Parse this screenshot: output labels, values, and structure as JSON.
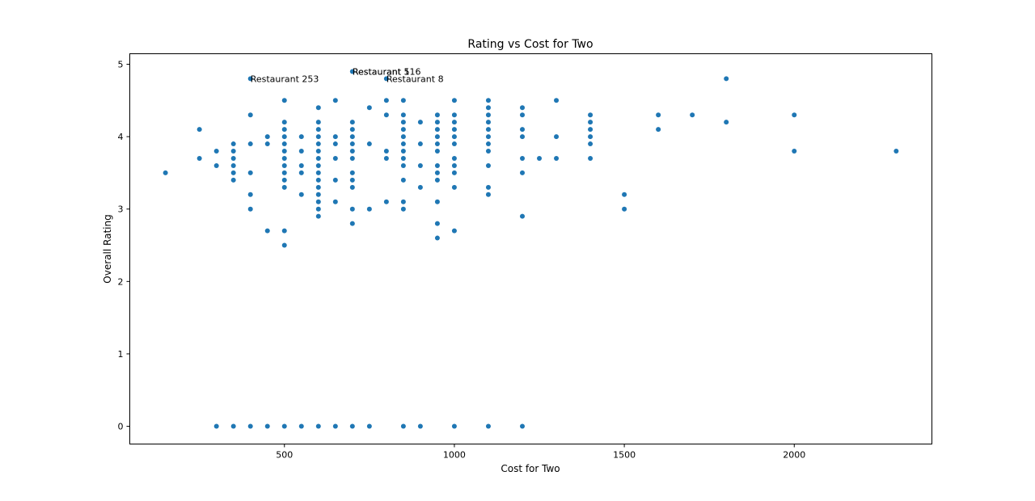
{
  "chart_data": {
    "type": "scatter",
    "title": "Rating vs Cost for Two",
    "xlabel": "Cost for Two",
    "ylabel": "Overall Rating",
    "xlim": [
      45,
      2405
    ],
    "ylim": [
      -0.245,
      5.145
    ],
    "xticks": [
      500,
      1000,
      1500,
      2000
    ],
    "xtick_labels": [
      "500",
      "1000",
      "1500",
      "2000"
    ],
    "yticks": [
      0,
      1,
      2,
      3,
      4,
      5
    ],
    "ytick_labels": [
      "0",
      "1",
      "2",
      "3",
      "4",
      "5"
    ],
    "grid": false,
    "marker_color": "#1f77b4",
    "annotations": [
      {
        "text": "Restaurant 253",
        "x": 400,
        "y": 4.8
      },
      {
        "text": "Restaurant 116",
        "x": 700,
        "y": 4.9
      },
      {
        "text": "Restaurant 5",
        "x": 700,
        "y": 4.9
      },
      {
        "text": "Restaurant 8",
        "x": 800,
        "y": 4.8
      }
    ],
    "points": [
      [
        150,
        3.5
      ],
      [
        250,
        4.1
      ],
      [
        250,
        3.7
      ],
      [
        300,
        3.8
      ],
      [
        300,
        3.6
      ],
      [
        300,
        0
      ],
      [
        350,
        3.9
      ],
      [
        350,
        3.8
      ],
      [
        350,
        3.7
      ],
      [
        350,
        3.6
      ],
      [
        350,
        3.5
      ],
      [
        350,
        3.4
      ],
      [
        350,
        0
      ],
      [
        400,
        4.8
      ],
      [
        400,
        4.3
      ],
      [
        400,
        3.9
      ],
      [
        400,
        3.5
      ],
      [
        400,
        3.2
      ],
      [
        400,
        3.0
      ],
      [
        400,
        0
      ],
      [
        450,
        4.0
      ],
      [
        450,
        3.9
      ],
      [
        450,
        2.7
      ],
      [
        450,
        0
      ],
      [
        500,
        4.5
      ],
      [
        500,
        4.2
      ],
      [
        500,
        4.1
      ],
      [
        500,
        4.0
      ],
      [
        500,
        3.9
      ],
      [
        500,
        3.8
      ],
      [
        500,
        3.7
      ],
      [
        500,
        3.6
      ],
      [
        500,
        3.5
      ],
      [
        500,
        3.4
      ],
      [
        500,
        3.3
      ],
      [
        500,
        2.7
      ],
      [
        500,
        2.5
      ],
      [
        500,
        0
      ],
      [
        550,
        4.0
      ],
      [
        550,
        3.8
      ],
      [
        550,
        3.6
      ],
      [
        550,
        3.5
      ],
      [
        550,
        3.2
      ],
      [
        550,
        0
      ],
      [
        600,
        4.4
      ],
      [
        600,
        4.2
      ],
      [
        600,
        4.1
      ],
      [
        600,
        4.0
      ],
      [
        600,
        3.9
      ],
      [
        600,
        3.8
      ],
      [
        600,
        3.7
      ],
      [
        600,
        3.6
      ],
      [
        600,
        3.5
      ],
      [
        600,
        3.4
      ],
      [
        600,
        3.3
      ],
      [
        600,
        3.2
      ],
      [
        600,
        3.1
      ],
      [
        600,
        3.0
      ],
      [
        600,
        2.9
      ],
      [
        600,
        0
      ],
      [
        650,
        4.5
      ],
      [
        650,
        4.0
      ],
      [
        650,
        3.9
      ],
      [
        650,
        3.7
      ],
      [
        650,
        3.4
      ],
      [
        650,
        3.1
      ],
      [
        650,
        0
      ],
      [
        700,
        4.9
      ],
      [
        700,
        4.2
      ],
      [
        700,
        4.1
      ],
      [
        700,
        4.0
      ],
      [
        700,
        3.9
      ],
      [
        700,
        3.8
      ],
      [
        700,
        3.7
      ],
      [
        700,
        3.5
      ],
      [
        700,
        3.4
      ],
      [
        700,
        3.3
      ],
      [
        700,
        3.0
      ],
      [
        700,
        2.8
      ],
      [
        700,
        0
      ],
      [
        750,
        4.4
      ],
      [
        750,
        3.9
      ],
      [
        750,
        3.0
      ],
      [
        750,
        0
      ],
      [
        800,
        4.8
      ],
      [
        800,
        4.5
      ],
      [
        800,
        4.3
      ],
      [
        800,
        3.8
      ],
      [
        800,
        3.7
      ],
      [
        800,
        3.1
      ],
      [
        850,
        4.5
      ],
      [
        850,
        4.3
      ],
      [
        850,
        4.2
      ],
      [
        850,
        4.1
      ],
      [
        850,
        4.0
      ],
      [
        850,
        3.9
      ],
      [
        850,
        3.8
      ],
      [
        850,
        3.7
      ],
      [
        850,
        3.6
      ],
      [
        850,
        3.4
      ],
      [
        850,
        3.1
      ],
      [
        850,
        3.0
      ],
      [
        850,
        0
      ],
      [
        900,
        4.2
      ],
      [
        900,
        3.9
      ],
      [
        900,
        3.6
      ],
      [
        900,
        3.3
      ],
      [
        900,
        0
      ],
      [
        950,
        4.3
      ],
      [
        950,
        4.2
      ],
      [
        950,
        4.1
      ],
      [
        950,
        4.0
      ],
      [
        950,
        3.9
      ],
      [
        950,
        3.8
      ],
      [
        950,
        3.6
      ],
      [
        950,
        3.5
      ],
      [
        950,
        3.4
      ],
      [
        950,
        3.1
      ],
      [
        950,
        2.8
      ],
      [
        950,
        2.6
      ],
      [
        1000,
        4.5
      ],
      [
        1000,
        4.3
      ],
      [
        1000,
        4.2
      ],
      [
        1000,
        4.1
      ],
      [
        1000,
        4.0
      ],
      [
        1000,
        3.9
      ],
      [
        1000,
        3.7
      ],
      [
        1000,
        3.6
      ],
      [
        1000,
        3.5
      ],
      [
        1000,
        3.3
      ],
      [
        1000,
        2.7
      ],
      [
        1000,
        0
      ],
      [
        1100,
        4.5
      ],
      [
        1100,
        4.4
      ],
      [
        1100,
        4.3
      ],
      [
        1100,
        4.2
      ],
      [
        1100,
        4.1
      ],
      [
        1100,
        4.0
      ],
      [
        1100,
        3.9
      ],
      [
        1100,
        3.8
      ],
      [
        1100,
        3.6
      ],
      [
        1100,
        3.3
      ],
      [
        1100,
        3.2
      ],
      [
        1100,
        0
      ],
      [
        1200,
        4.4
      ],
      [
        1200,
        4.3
      ],
      [
        1200,
        4.1
      ],
      [
        1200,
        4.0
      ],
      [
        1200,
        3.7
      ],
      [
        1200,
        3.5
      ],
      [
        1200,
        2.9
      ],
      [
        1200,
        0
      ],
      [
        1250,
        3.7
      ],
      [
        1300,
        4.5
      ],
      [
        1300,
        4.0
      ],
      [
        1300,
        3.7
      ],
      [
        1400,
        4.3
      ],
      [
        1400,
        4.2
      ],
      [
        1400,
        4.1
      ],
      [
        1400,
        4.0
      ],
      [
        1400,
        3.9
      ],
      [
        1400,
        3.7
      ],
      [
        1500,
        3.2
      ],
      [
        1500,
        3.0
      ],
      [
        1600,
        4.3
      ],
      [
        1600,
        4.1
      ],
      [
        1700,
        4.3
      ],
      [
        1800,
        4.8
      ],
      [
        1800,
        4.2
      ],
      [
        2000,
        4.3
      ],
      [
        2000,
        3.8
      ],
      [
        2300,
        3.8
      ]
    ]
  }
}
